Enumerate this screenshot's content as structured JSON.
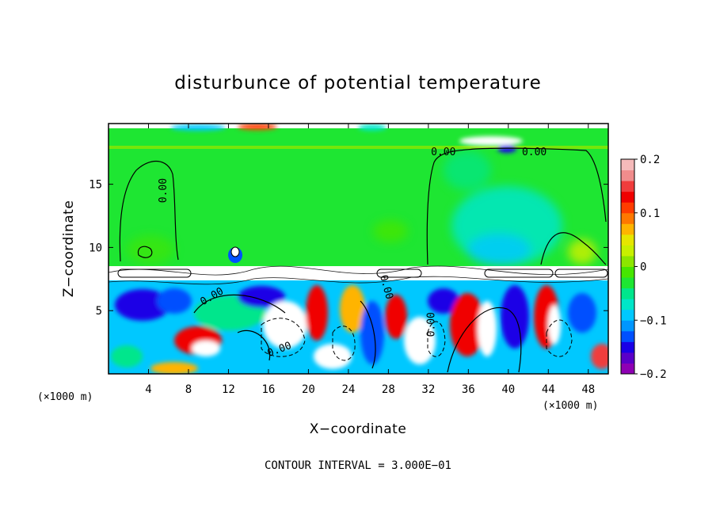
{
  "chart_data": {
    "type": "heatmap",
    "title": "disturbunce of potential temperature",
    "xlabel": "X−coordinate",
    "ylabel": "Z−coordinate",
    "x_unit_left": "(×1000 m)",
    "x_unit_right": "(×1000 m)",
    "x_range": [
      0,
      50
    ],
    "y_range": [
      0,
      19.8
    ],
    "x_ticks": [
      4,
      8,
      12,
      16,
      20,
      24,
      28,
      32,
      36,
      40,
      44,
      48
    ],
    "x_tick_labels": [
      "4",
      "8",
      "12",
      "16",
      "20",
      "24",
      "28",
      "32",
      "36",
      "40",
      "44",
      "48"
    ],
    "y_ticks": [
      5,
      10,
      15
    ],
    "y_tick_labels": [
      "5",
      "10",
      "15"
    ],
    "colorbar": {
      "min": -0.2,
      "max": 0.2,
      "ticks": [
        0.2,
        0.1,
        0,
        -0.1,
        -0.2
      ],
      "tick_labels": [
        "0.2",
        "0.1",
        "0",
        "−0.1",
        "−0.2"
      ],
      "colors": [
        "#8e00b4",
        "#5a00c8",
        "#1a00e6",
        "#0050ff",
        "#0096ff",
        "#00c8ff",
        "#00e6c8",
        "#00e68c",
        "#1ee632",
        "#46e600",
        "#8ce600",
        "#c8f000",
        "#e6e600",
        "#ffb400",
        "#ff7800",
        "#ff3c00",
        "#f00000",
        "#f03c3c",
        "#f08c8c",
        "#f5baba"
      ]
    },
    "contour_labels": [
      {
        "text": "0.00",
        "x": 5.8,
        "z": 14.5,
        "rotate": -90
      },
      {
        "text": "0.00",
        "x": 10.5,
        "z": 5.9,
        "rotate": -30
      },
      {
        "text": "0.00",
        "x": 17.2,
        "z": 1.7,
        "rotate": -20
      },
      {
        "text": "0.00",
        "x": 27.5,
        "z": 6.8,
        "rotate": 75
      },
      {
        "text": "0.00",
        "x": 32.6,
        "z": 3.9,
        "rotate": -90
      },
      {
        "text": "0.00",
        "x": 33.5,
        "z": 17.3,
        "rotate": 0
      },
      {
        "text": "0.00",
        "x": 42.6,
        "z": 17.3,
        "rotate": 0
      }
    ],
    "footnote": "CONTOUR INTERVAL = 3.000E−01"
  }
}
